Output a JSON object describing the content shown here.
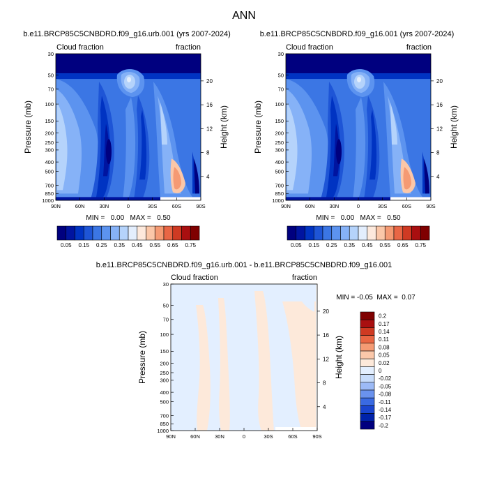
{
  "page_title": "ANN",
  "colors": {
    "abs_levels": [
      "#00007f",
      "#0014a0",
      "#0033c2",
      "#1e55d6",
      "#3b76e4",
      "#5c93ef",
      "#86b2f7",
      "#b5d3fb",
      "#e3eefd",
      "#fde9dc",
      "#fbc7a8",
      "#f59a73",
      "#e96645",
      "#cf3a23",
      "#a90f10",
      "#7f0000"
    ],
    "diff_levels": [
      "#00007f",
      "#0022aa",
      "#1a45cf",
      "#3a6ae2",
      "#6a92ee",
      "#9cbaf6",
      "#c7dcfb",
      "#e3efff",
      "#fde9da",
      "#fbc8aa",
      "#f59b74",
      "#e96643",
      "#cf3a22",
      "#a90f10",
      "#7f0000"
    ]
  },
  "chart_data": [
    {
      "type": "heatmap",
      "title": "b.e11.BRCP85C5CNBDRD.f09_g16.urb.001 (yrs 2007-2024)",
      "left_label": "Cloud fraction",
      "right_label": "fraction",
      "ylabel": "Pressure (mb)",
      "y2label": "Height (km)",
      "x_ticks": [
        "90N",
        "60N",
        "30N",
        "0",
        "30S",
        "60S",
        "90S"
      ],
      "y_ticks": [
        "30",
        "50",
        "70",
        "100",
        "150",
        "200",
        "250",
        "300",
        "400",
        "500",
        "700",
        "850",
        "1000"
      ],
      "y_tick_values": [
        30,
        50,
        70,
        100,
        150,
        200,
        250,
        300,
        400,
        500,
        700,
        850,
        1000
      ],
      "y2_ticks": [
        "20",
        "16",
        "12",
        "8",
        "4"
      ],
      "ylim": [
        1000,
        30
      ],
      "min_max_text": "MIN =   0.00   MAX =   0.50",
      "colorbar_labels": [
        "0.05",
        "0.15",
        "0.25",
        "0.35",
        "0.45",
        "0.55",
        "0.65",
        "0.75"
      ],
      "colorbar_levels": 16
    },
    {
      "type": "heatmap",
      "title": "b.e11.BRCP85C5CNBDRD.f09_g16.001 (yrs 2007-2024)",
      "left_label": "Cloud fraction",
      "right_label": "fraction",
      "ylabel": "Pressure (mb)",
      "y2label": "Height (km)",
      "x_ticks": [
        "90N",
        "60N",
        "30N",
        "0",
        "30S",
        "60S",
        "90S"
      ],
      "y_ticks": [
        "30",
        "50",
        "70",
        "100",
        "150",
        "200",
        "250",
        "300",
        "400",
        "500",
        "700",
        "850",
        "1000"
      ],
      "y_tick_values": [
        30,
        50,
        70,
        100,
        150,
        200,
        250,
        300,
        400,
        500,
        700,
        850,
        1000
      ],
      "y2_ticks": [
        "20",
        "16",
        "12",
        "8",
        "4"
      ],
      "ylim": [
        1000,
        30
      ],
      "min_max_text": "MIN =   0.00   MAX =   0.50",
      "colorbar_labels": [
        "0.05",
        "0.15",
        "0.25",
        "0.35",
        "0.45",
        "0.55",
        "0.65",
        "0.75"
      ],
      "colorbar_levels": 16
    },
    {
      "type": "heatmap",
      "title": "b.e11.BRCP85C5CNBDRD.f09_g16.urb.001 - b.e11.BRCP85C5CNBDRD.f09_g16.001",
      "left_label": "Cloud fraction",
      "right_label": "fraction",
      "ylabel": "Pressure (mb)",
      "y2label": "Height (km)",
      "x_ticks": [
        "90N",
        "60N",
        "30N",
        "0",
        "30S",
        "60S",
        "90S"
      ],
      "y_ticks": [
        "30",
        "50",
        "70",
        "100",
        "150",
        "200",
        "250",
        "300",
        "400",
        "500",
        "700",
        "850",
        "1000"
      ],
      "y_tick_values": [
        30,
        50,
        70,
        100,
        150,
        200,
        250,
        300,
        400,
        500,
        700,
        850,
        1000
      ],
      "y2_ticks": [
        "20",
        "16",
        "12",
        "8",
        "4"
      ],
      "ylim": [
        1000,
        30
      ],
      "min_max_text": "MIN = -0.05  MAX =  0.07",
      "colorbar_labels": [
        "0.2",
        "0.17",
        "0.14",
        "0.11",
        "0.08",
        "0.05",
        "0.02",
        "0",
        "-0.02",
        "-0.05",
        "-0.08",
        "-0.11",
        "-0.14",
        "-0.17",
        "-0.2"
      ],
      "colorbar_levels": 15
    }
  ]
}
